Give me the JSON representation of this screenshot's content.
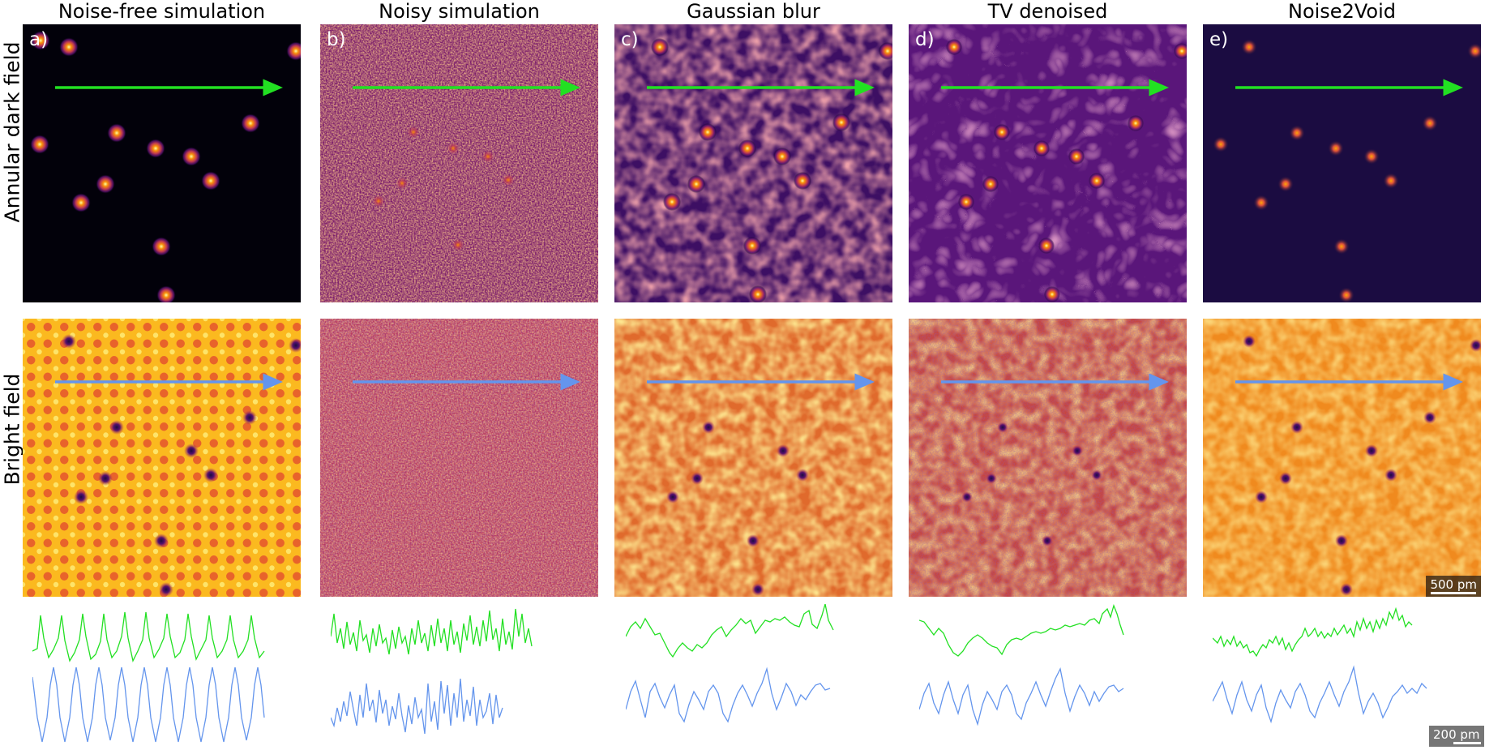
{
  "columns": [
    {
      "title": "Noise-free simulation",
      "letter": "a)"
    },
    {
      "title": "Noisy simulation",
      "letter": "b)"
    },
    {
      "title": "Gaussian blur",
      "letter": "c)"
    },
    {
      "title": "TV denoised",
      "letter": "d)"
    },
    {
      "title": "Noise2Void",
      "letter": "e)"
    }
  ],
  "rows": [
    {
      "label": "Annular dark field"
    },
    {
      "label": "Bright field"
    }
  ],
  "scalebars": {
    "image": "500 pm",
    "profile": "200 pm"
  },
  "colors": {
    "adf_arrow": "#22e022",
    "bf_arrow": "#6495ed",
    "adf_profile": "#22e022",
    "bf_profile": "#6495ed",
    "colormap": "inferno"
  }
}
